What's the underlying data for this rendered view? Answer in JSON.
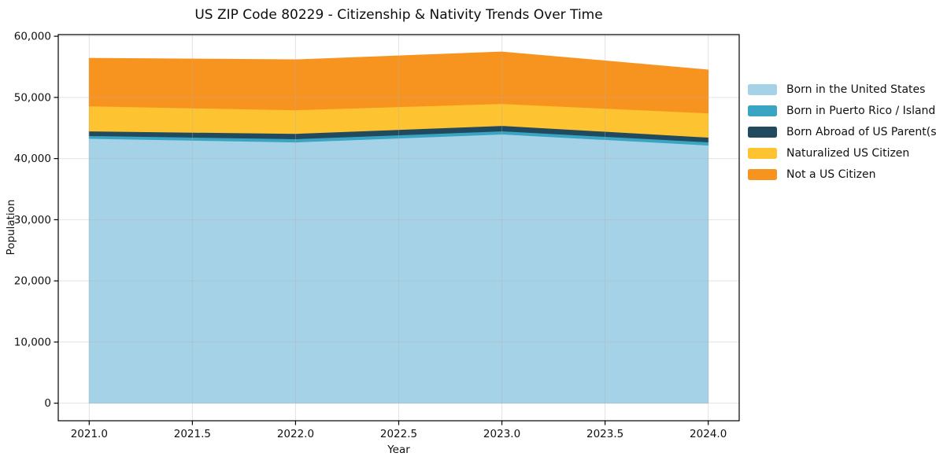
{
  "chart_data": {
    "type": "area",
    "stacked": true,
    "title": "US ZIP Code 80229 - Citizenship & Nativity Trends Over Time",
    "xlabel": "Year",
    "ylabel": "Population",
    "x": [
      2021,
      2022,
      2023,
      2024
    ],
    "series": [
      {
        "name": "Born in the United States",
        "color": "#A6D2E7",
        "values": [
          43300,
          42700,
          44000,
          42200
        ]
      },
      {
        "name": "Born in Puerto Rico / Islands",
        "color": "#3AA5C2",
        "values": [
          450,
          530,
          510,
          520
        ]
      },
      {
        "name": "Born Abroad of US Parent(s)",
        "color": "#214A5E",
        "values": [
          750,
          870,
          890,
          770
        ]
      },
      {
        "name": "Naturalized US Citizen",
        "color": "#FDC330",
        "values": [
          4100,
          3860,
          3590,
          3960
        ]
      },
      {
        "name": "Not a US Citizen",
        "color": "#F79420",
        "values": [
          7800,
          8190,
          8440,
          7040
        ]
      }
    ],
    "xlim": [
      2020.85,
      2024.15
    ],
    "ylim": [
      -2870,
      60270
    ],
    "xticks": [
      2021.0,
      2021.5,
      2022.0,
      2022.5,
      2023.0,
      2023.5,
      2024.0
    ],
    "xtick_labels": [
      "2021.0",
      "2021.5",
      "2022.0",
      "2022.5",
      "2023.0",
      "2023.5",
      "2024.0"
    ],
    "yticks": [
      0,
      10000,
      20000,
      30000,
      40000,
      50000,
      60000
    ],
    "ytick_labels": [
      "0",
      "10,000",
      "20,000",
      "30,000",
      "40,000",
      "50,000",
      "60,000"
    ],
    "grid": true,
    "legend_position": "right-outside"
  }
}
